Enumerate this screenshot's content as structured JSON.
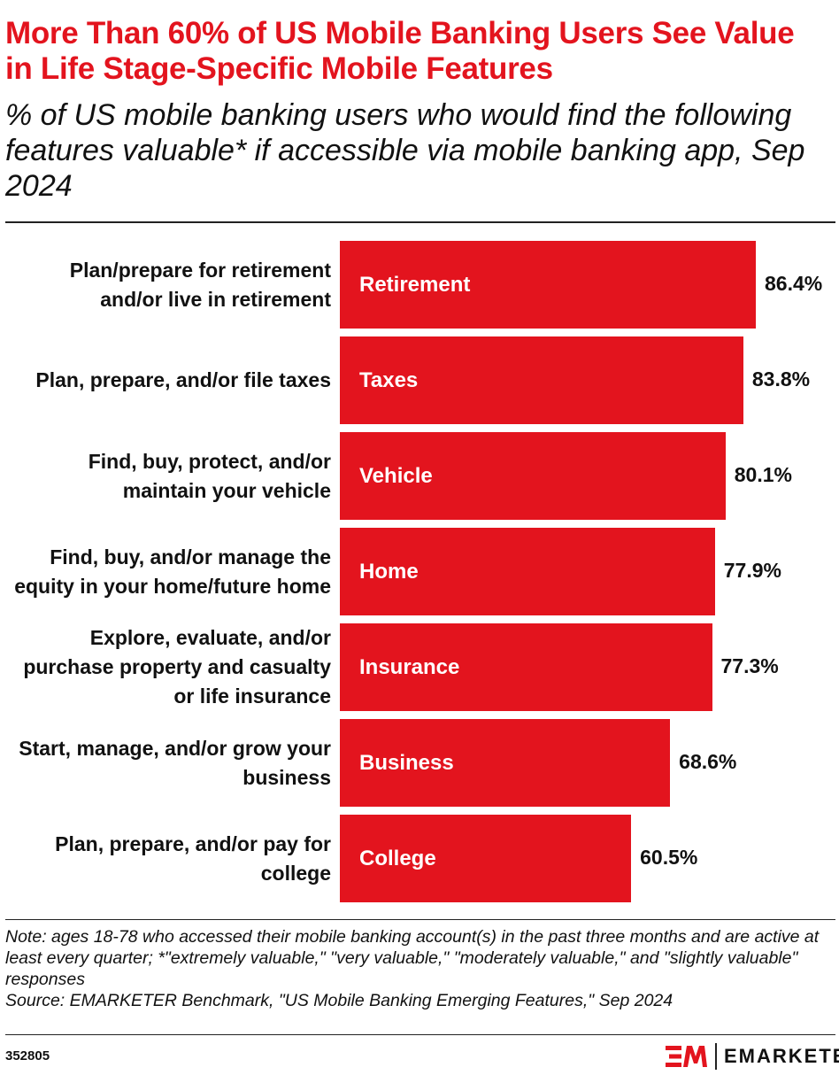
{
  "header": {
    "title": "More Than 60% of US Mobile Banking Users See Value in Life Stage-Specific Mobile Features",
    "subtitle": "% of US mobile banking users who would find the following features valuable* if accessible via mobile banking app, Sep 2024"
  },
  "chart_data": {
    "type": "bar",
    "orientation": "horizontal",
    "categories": [
      "Plan/prepare for retirement and/or live in retirement",
      "Plan, prepare, and/or file taxes",
      "Find, buy, protect, and/or maintain your vehicle",
      "Find, buy, and/or manage the equity in your home/future home",
      "Explore, evaluate, and/or purchase property and casualty or life insurance",
      "Start, manage, and/or grow your business",
      "Plan, prepare, and/or pay for college"
    ],
    "bar_labels": [
      "Retirement",
      "Taxes",
      "Vehicle",
      "Home",
      "Insurance",
      "Business",
      "College"
    ],
    "values": [
      86.4,
      83.8,
      80.1,
      77.9,
      77.3,
      68.6,
      60.5
    ],
    "value_labels": [
      "86.4%",
      "83.8%",
      "80.1%",
      "77.9%",
      "77.3%",
      "68.6%",
      "60.5%"
    ],
    "xlim": [
      0,
      100
    ],
    "grid": false,
    "bar_color": "#e3141e"
  },
  "footer": {
    "note": "Note: ages 18-78 who accessed their mobile banking account(s) in the past three months and are active at least every quarter; *\"extremely valuable,\" \"very valuable,\" \"moderately valuable,\" and \"slightly valuable\" responses",
    "source": "Source: EMARKETER Benchmark, \"US Mobile Banking Emerging Features,\" Sep 2024",
    "chart_id": "352805",
    "logo_text": "EMARKETER"
  }
}
